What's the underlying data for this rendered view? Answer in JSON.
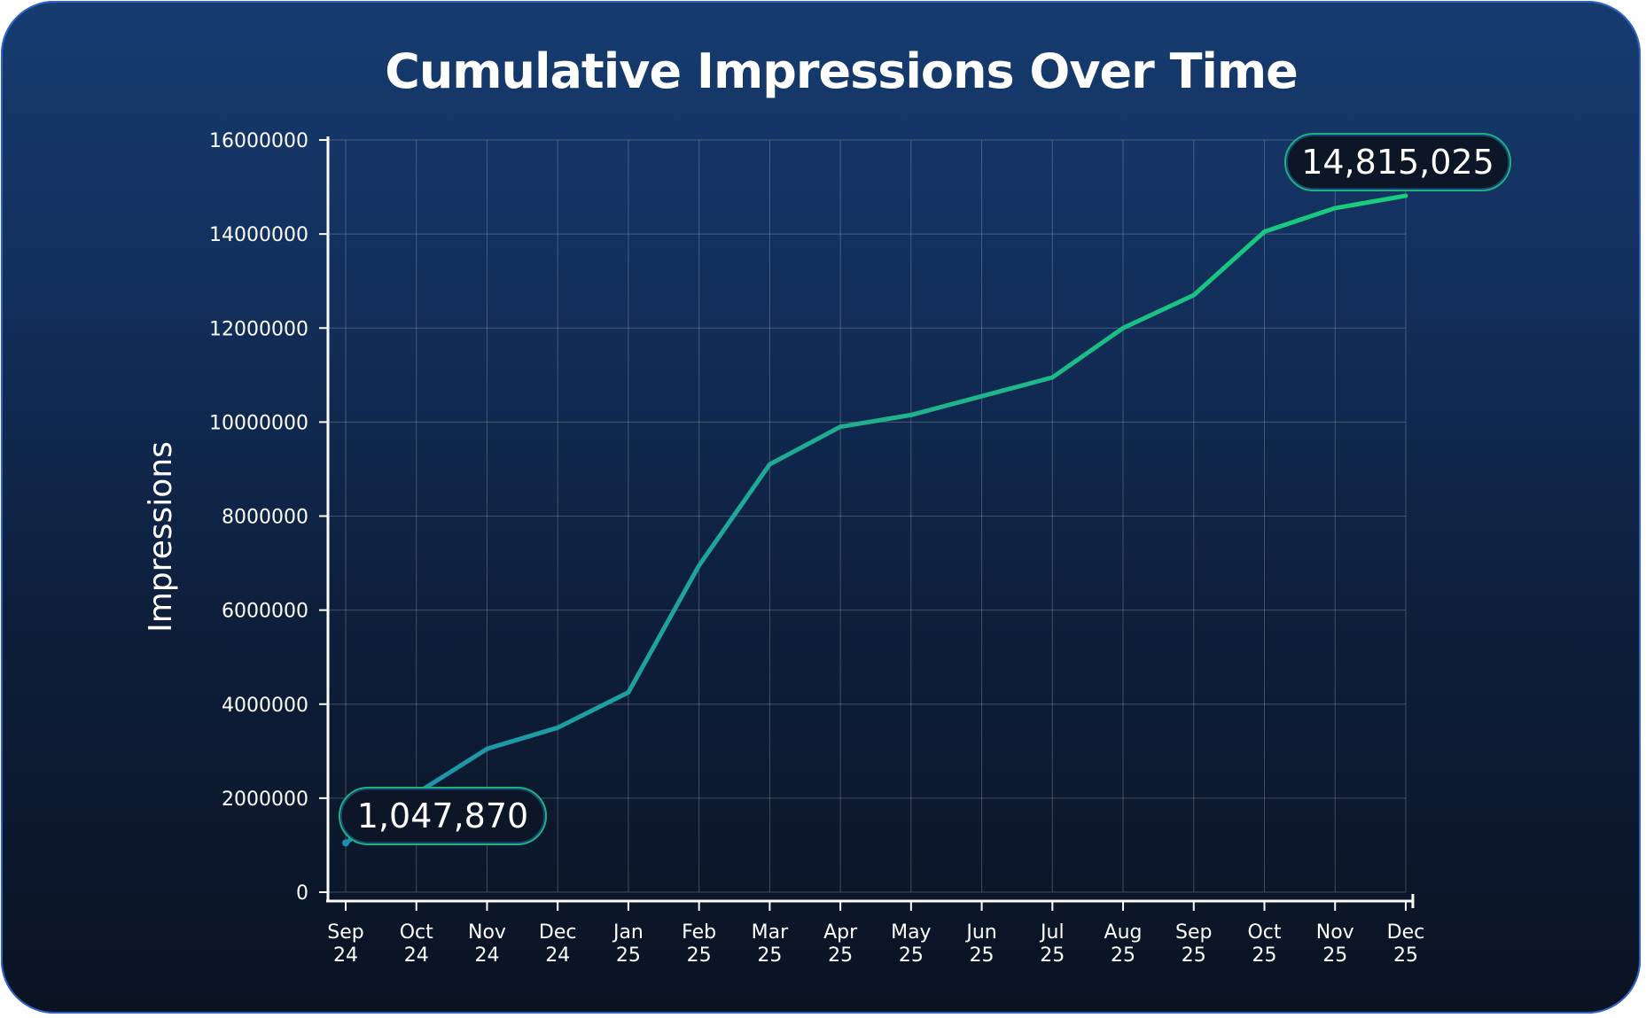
{
  "chart_data": {
    "type": "line",
    "title": "Cumulative Impressions Over Time",
    "xlabel": "",
    "ylabel": "Impressions",
    "ylim": [
      0,
      16000000
    ],
    "y_ticks": [
      "0",
      "2000000",
      "4000000",
      "6000000",
      "8000000",
      "10000000",
      "12000000",
      "14000000",
      "16000000"
    ],
    "categories": [
      [
        "Sep",
        "24"
      ],
      [
        "Oct",
        "24"
      ],
      [
        "Nov",
        "24"
      ],
      [
        "Dec",
        "24"
      ],
      [
        "Jan",
        "25"
      ],
      [
        "Feb",
        "25"
      ],
      [
        "Mar",
        "25"
      ],
      [
        "Apr",
        "25"
      ],
      [
        "May",
        "25"
      ],
      [
        "Jun",
        "25"
      ],
      [
        "Jul",
        "25"
      ],
      [
        "Aug",
        "25"
      ],
      [
        "Sep",
        "25"
      ],
      [
        "Oct",
        "25"
      ],
      [
        "Nov",
        "25"
      ],
      [
        "Dec",
        "25"
      ]
    ],
    "values": [
      1047870,
      2100000,
      3050000,
      3500000,
      4250000,
      6950000,
      9100000,
      9900000,
      10150000,
      10550000,
      10950000,
      12000000,
      12700000,
      14050000,
      14550000,
      14815025
    ],
    "grid": true,
    "line_colors": [
      "#1e8fb0",
      "#1fb08e",
      "#17d07a"
    ],
    "annotations": {
      "start_label": "1,047,870",
      "end_label": "14,815,025"
    }
  }
}
